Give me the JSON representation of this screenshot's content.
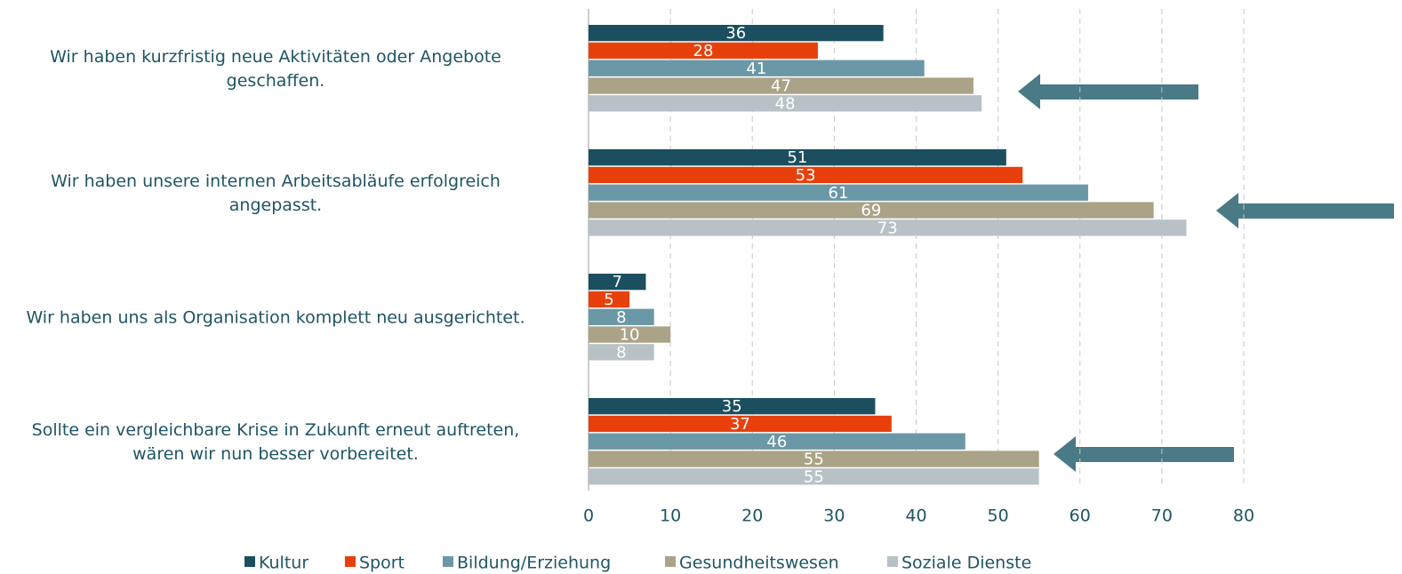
{
  "chart_data": {
    "type": "hbar",
    "categories": [
      "Wir haben kurzfristig neue Aktivitäten oder Angebote\ngeschaffen.",
      "Wir haben unsere internen Arbeitsabläufe erfolgreich\nangepasst.",
      "Wir haben uns als Organisation komplett neu ausgerichtet.",
      "Sollte ein vergleichbare Krise in Zukunft erneut auftreten,\nwären wir nun besser vorbereitet."
    ],
    "series": [
      {
        "name": "Kultur",
        "color": "#1b4f5f",
        "values": [
          36,
          51,
          7,
          35
        ]
      },
      {
        "name": "Sport",
        "color": "#e8400c",
        "values": [
          28,
          53,
          5,
          37
        ]
      },
      {
        "name": "Bildung/Erziehung",
        "color": "#6b98a6",
        "values": [
          41,
          61,
          8,
          46
        ]
      },
      {
        "name": "Gesundheitswesen",
        "color": "#aba387",
        "values": [
          47,
          69,
          10,
          55
        ]
      },
      {
        "name": "Soziale Dienste",
        "color": "#b8c2c6",
        "values": [
          48,
          73,
          8,
          55
        ]
      }
    ],
    "xlim": [
      0,
      80
    ],
    "xticks": [
      0,
      10,
      20,
      30,
      40,
      50,
      60,
      70,
      80
    ],
    "grid": true
  }
}
